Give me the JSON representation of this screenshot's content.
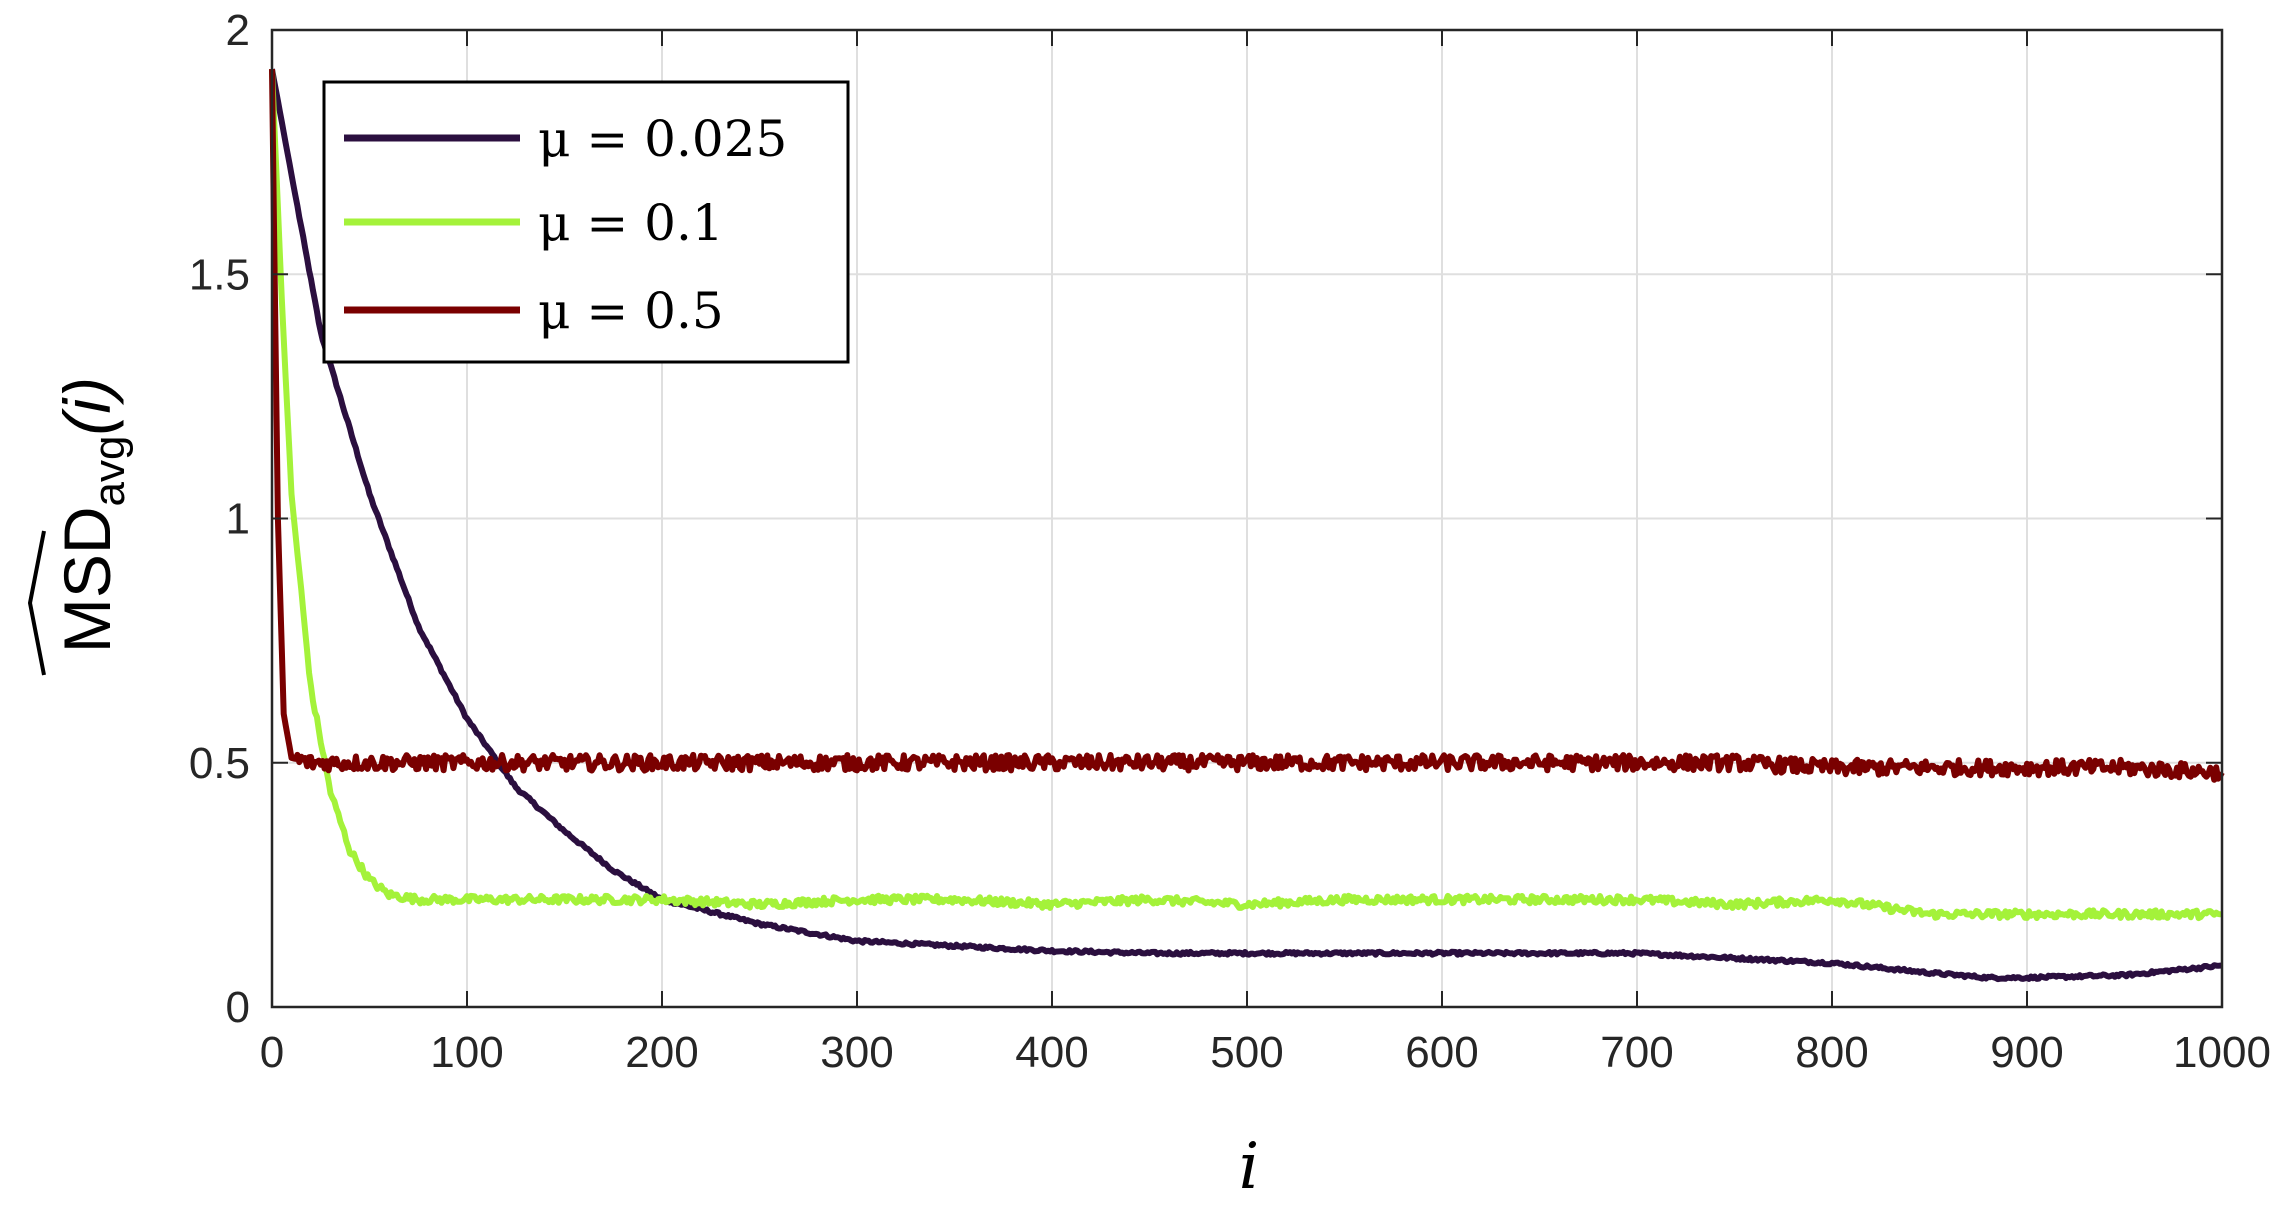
{
  "chart_data": {
    "type": "line",
    "xlabel": "i",
    "ylabel": {
      "base": "MSD",
      "subscript": "avg",
      "argument": "(i)"
    },
    "xlim": [
      0,
      1000
    ],
    "ylim": [
      0,
      2
    ],
    "x_ticks": [
      "0",
      "100",
      "200",
      "300",
      "400",
      "500",
      "600",
      "700",
      "800",
      "900",
      "1000"
    ],
    "y_ticks": [
      "0",
      "0.5",
      "1",
      "1.5",
      "2"
    ],
    "grid": true,
    "legend_position": "top-left",
    "series": [
      {
        "name": "μ = 0.025",
        "color": "#2b0f3f",
        "x": [
          0,
          25,
          50,
          75,
          100,
          125,
          150,
          175,
          200,
          250,
          300,
          350,
          400,
          450,
          500,
          550,
          600,
          650,
          700,
          750,
          800,
          850,
          880,
          900,
          950,
          1000
        ],
        "y": [
          1.92,
          1.38,
          1.05,
          0.78,
          0.59,
          0.45,
          0.36,
          0.28,
          0.22,
          0.17,
          0.135,
          0.125,
          0.115,
          0.11,
          0.11,
          0.11,
          0.11,
          0.11,
          0.11,
          0.1,
          0.09,
          0.07,
          0.06,
          0.06,
          0.065,
          0.085
        ]
      },
      {
        "name": "μ = 0.1",
        "color": "#a4f23a",
        "x": [
          0,
          5,
          10,
          20,
          30,
          40,
          50,
          60,
          75,
          100,
          150,
          200,
          250,
          300,
          350,
          400,
          450,
          500,
          550,
          600,
          650,
          700,
          750,
          800,
          850,
          900,
          950,
          1000
        ],
        "y": [
          1.92,
          1.45,
          1.05,
          0.65,
          0.44,
          0.32,
          0.26,
          0.23,
          0.22,
          0.22,
          0.22,
          0.22,
          0.21,
          0.22,
          0.22,
          0.21,
          0.22,
          0.21,
          0.22,
          0.22,
          0.22,
          0.22,
          0.21,
          0.22,
          0.19,
          0.19,
          0.19,
          0.19
        ]
      },
      {
        "name": "μ = 0.5",
        "color": "#7a0000",
        "x": [
          0,
          3,
          6,
          10,
          20,
          50,
          100,
          150,
          200,
          250,
          300,
          350,
          400,
          450,
          500,
          550,
          600,
          650,
          700,
          750,
          800,
          850,
          900,
          950,
          1000
        ],
        "y": [
          1.92,
          1.0,
          0.6,
          0.51,
          0.5,
          0.5,
          0.5,
          0.5,
          0.5,
          0.5,
          0.5,
          0.5,
          0.5,
          0.5,
          0.5,
          0.5,
          0.5,
          0.5,
          0.5,
          0.5,
          0.49,
          0.49,
          0.49,
          0.49,
          0.48
        ]
      }
    ]
  }
}
